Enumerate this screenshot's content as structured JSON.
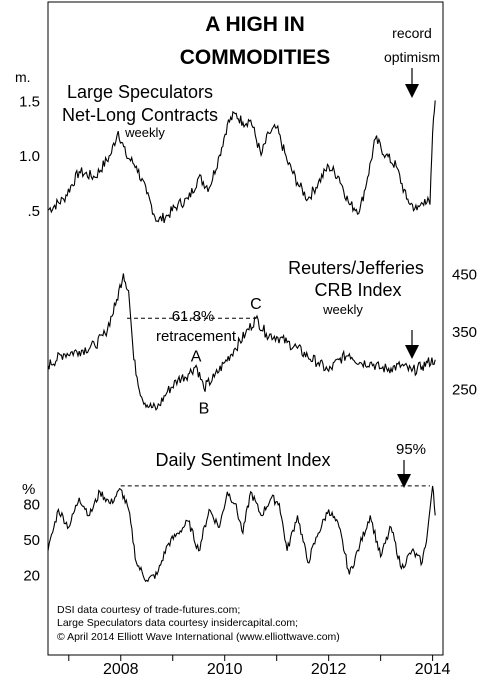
{
  "title_line1": "A HIGH IN",
  "title_line2": "COMMODITIES",
  "credits": [
    "DSI data courtesy of trade-futures.com;",
    "Large Speculators data courtesy insidercapital.com;",
    "© April 2014 Elliott Wave International (www.elliottwave.com)"
  ],
  "x_axis": {
    "ticks": [
      "2008",
      "2010",
      "2012",
      "2014"
    ],
    "tick_values": [
      2008,
      2010,
      2012,
      2014
    ],
    "range": [
      2006.6,
      2014.2
    ]
  },
  "chart_data": [
    {
      "type": "line",
      "panel": "speculators",
      "title_line1": "Large Speculators",
      "title_line2": "Net-Long Contracts",
      "subtitle": "weekly",
      "ylabel": "m.",
      "yticks": [
        "1.5",
        "1.0",
        ".5"
      ],
      "ytick_values": [
        1.5,
        1.0,
        0.5
      ],
      "ylim": [
        0.3,
        1.75
      ],
      "annotation_line1": "record",
      "annotation_line2": "optimism",
      "x": [
        2006.6,
        2006.9,
        2007.2,
        2007.5,
        2007.8,
        2007.95,
        2008.1,
        2008.3,
        2008.5,
        2008.7,
        2008.9,
        2009.1,
        2009.3,
        2009.5,
        2009.7,
        2009.9,
        2010.05,
        2010.2,
        2010.35,
        2010.5,
        2010.7,
        2010.85,
        2011.0,
        2011.2,
        2011.4,
        2011.6,
        2011.8,
        2012.0,
        2012.2,
        2012.4,
        2012.6,
        2012.75,
        2012.9,
        2013.1,
        2013.3,
        2013.5,
        2013.7,
        2013.85,
        2013.95,
        2014.0,
        2014.05
      ],
      "values": [
        0.5,
        0.6,
        0.85,
        0.8,
        1.0,
        1.22,
        1.0,
        0.9,
        0.65,
        0.4,
        0.45,
        0.55,
        0.6,
        0.8,
        0.7,
        1.0,
        1.28,
        1.38,
        1.3,
        1.32,
        1.0,
        1.2,
        1.25,
        0.95,
        0.75,
        0.6,
        0.75,
        0.9,
        0.8,
        0.55,
        0.5,
        0.8,
        1.15,
        1.0,
        0.9,
        0.6,
        0.5,
        0.6,
        0.55,
        1.2,
        1.5
      ]
    },
    {
      "type": "line",
      "panel": "crb",
      "title_line1": "Reuters/Jefferies",
      "title_line2": "CRB Index",
      "subtitle": "weekly",
      "yticks": [
        "450",
        "350",
        "250"
      ],
      "ytick_values": [
        450,
        350,
        250
      ],
      "ylim": [
        195,
        470
      ],
      "retracement_pct": "61.8%",
      "retracement_label": "retracement",
      "retracement_level": 372,
      "wave_labels": [
        {
          "label": "A",
          "x": 2009.45,
          "y": 283
        },
        {
          "label": "B",
          "x": 2009.6,
          "y": 245
        },
        {
          "label": "C",
          "x": 2010.6,
          "y": 374
        }
      ],
      "x": [
        2006.6,
        2006.9,
        2007.2,
        2007.5,
        2007.7,
        2007.9,
        2008.05,
        2008.15,
        2008.25,
        2008.4,
        2008.55,
        2008.7,
        2008.9,
        2009.1,
        2009.3,
        2009.45,
        2009.6,
        2009.8,
        2010.0,
        2010.2,
        2010.4,
        2010.6,
        2010.8,
        2011.0,
        2011.2,
        2011.4,
        2011.6,
        2011.8,
        2012.0,
        2012.2,
        2012.4,
        2012.6,
        2012.8,
        2013.0,
        2013.2,
        2013.4,
        2013.6,
        2013.8,
        2013.9,
        2014.05
      ],
      "values": [
        290,
        310,
        315,
        325,
        345,
        395,
        450,
        420,
        300,
        235,
        218,
        215,
        245,
        265,
        275,
        290,
        250,
        270,
        295,
        320,
        345,
        372,
        345,
        340,
        330,
        320,
        305,
        295,
        280,
        300,
        310,
        295,
        295,
        285,
        285,
        290,
        280,
        288,
        295,
        300
      ]
    },
    {
      "type": "line",
      "panel": "dsi",
      "title": "Daily Sentiment Index",
      "ylabel": "%",
      "yticks": [
        "80",
        "50",
        "20"
      ],
      "ytick_values": [
        80,
        50,
        20
      ],
      "ylim": [
        0,
        100
      ],
      "peak_label": "95%",
      "reference_level": 95,
      "x": [
        2006.6,
        2006.8,
        2007.0,
        2007.2,
        2007.4,
        2007.6,
        2007.8,
        2008.0,
        2008.15,
        2008.3,
        2008.5,
        2008.7,
        2008.9,
        2009.1,
        2009.3,
        2009.5,
        2009.7,
        2009.9,
        2010.05,
        2010.2,
        2010.35,
        2010.5,
        2010.7,
        2010.9,
        2011.05,
        2011.2,
        2011.4,
        2011.6,
        2011.8,
        2012.0,
        2012.2,
        2012.4,
        2012.6,
        2012.8,
        2013.0,
        2013.2,
        2013.4,
        2013.6,
        2013.8,
        2013.9,
        2014.0,
        2014.05
      ],
      "values": [
        40,
        75,
        60,
        85,
        70,
        90,
        80,
        92,
        75,
        30,
        15,
        20,
        45,
        55,
        65,
        40,
        75,
        60,
        90,
        80,
        55,
        90,
        70,
        85,
        80,
        40,
        70,
        30,
        55,
        75,
        60,
        20,
        45,
        70,
        35,
        60,
        25,
        40,
        30,
        55,
        95,
        70
      ]
    }
  ]
}
